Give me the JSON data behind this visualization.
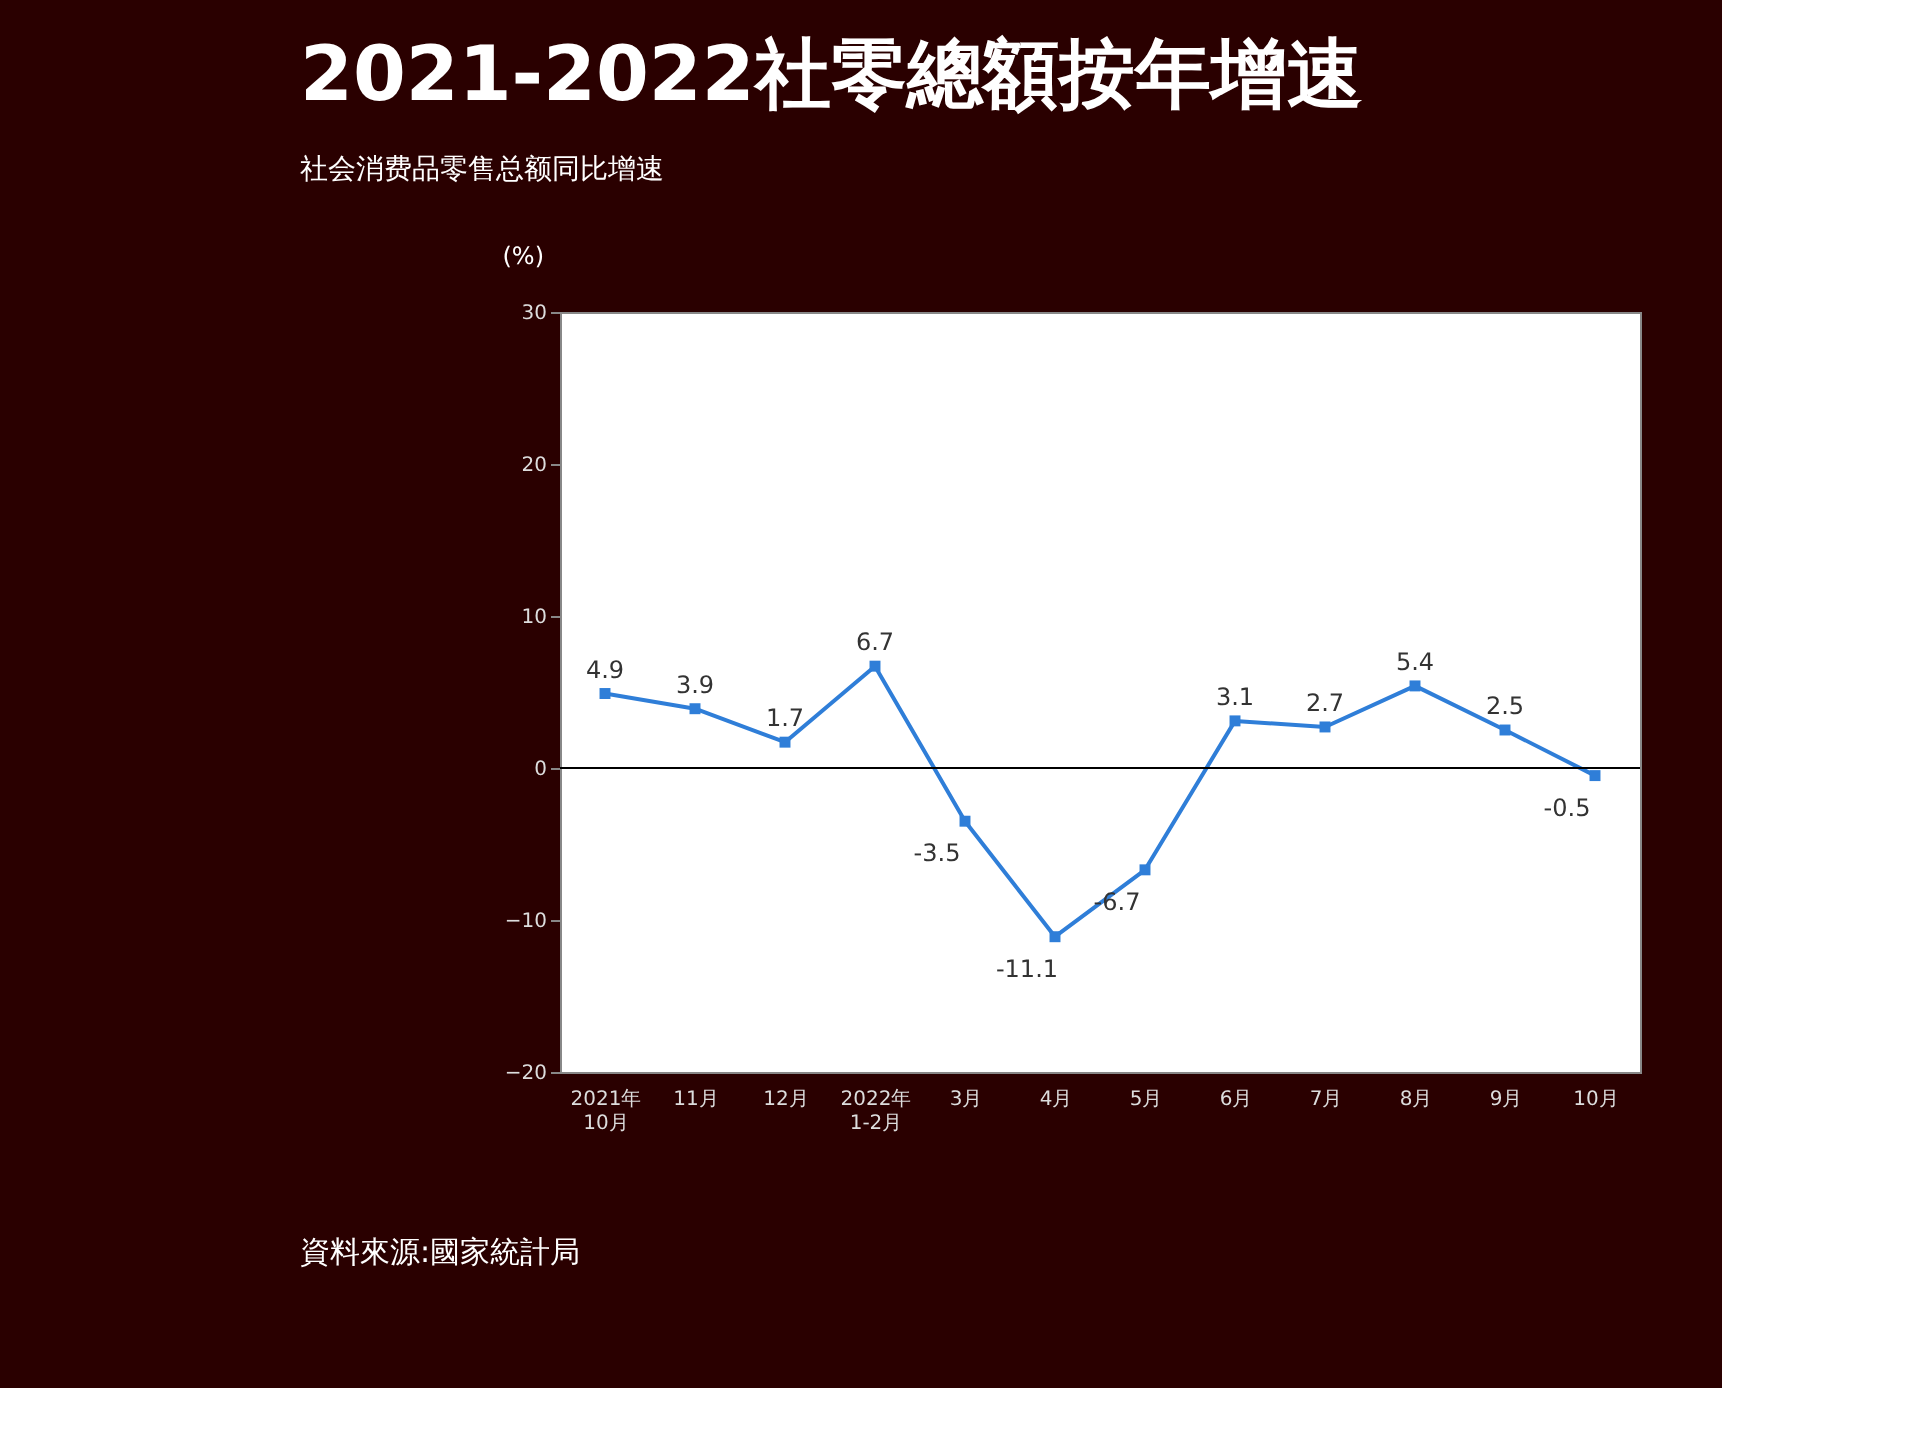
{
  "chart_data": {
    "type": "line",
    "title": "2021-2022社零總額按年增速",
    "subtitle": "社会消费品零售总额同比增速",
    "ylabel": "(%)",
    "categories": [
      "2021年\n10月",
      "11月",
      "12月",
      "2022年\n1-2月",
      "3月",
      "4月",
      "5月",
      "6月",
      "7月",
      "8月",
      "9月",
      "10月"
    ],
    "series": [
      {
        "color": "#2f7ed8",
        "values": [
          4.9,
          3.9,
          1.7,
          6.7,
          -3.5,
          -11.1,
          -6.7,
          3.1,
          2.7,
          5.4,
          2.5,
          -0.5
        ]
      }
    ],
    "ylim": [
      -20,
      30
    ],
    "yticks": [
      -20,
      -10,
      0,
      10,
      20,
      30
    ],
    "ref_lines": [
      {
        "axis": "y",
        "value": 0,
        "color": "#000000"
      }
    ],
    "grid": false,
    "marker": "square",
    "line_style": "solid",
    "data_labels": true,
    "annotations": [
      "資料來源:國家統計局"
    ]
  }
}
